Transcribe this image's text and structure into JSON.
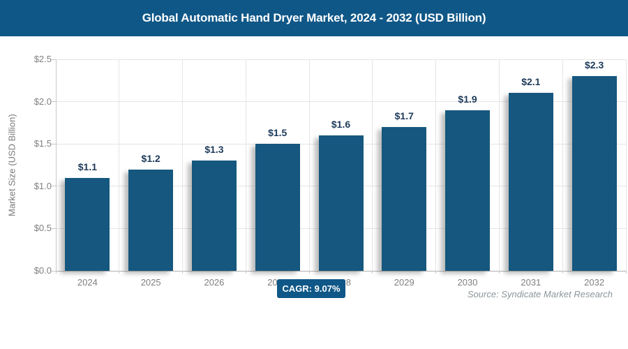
{
  "header": {
    "title": "Global Automatic Hand Dryer Market, 2024 - 2032 (USD Billion)"
  },
  "chart_data": {
    "type": "bar",
    "title": "Global Automatic Hand Dryer Market, 2024 - 2032 (USD Billion)",
    "categories": [
      "2024",
      "2025",
      "2026",
      "2027",
      "2028",
      "2029",
      "2030",
      "2031",
      "2032"
    ],
    "values": [
      1.1,
      1.2,
      1.3,
      1.5,
      1.6,
      1.7,
      1.9,
      2.1,
      2.3
    ],
    "bar_labels": [
      "$1.1",
      "$1.2",
      "$1.3",
      "$1.5",
      "$1.6",
      "$1.7",
      "$1.9",
      "$2.1",
      "$2.3"
    ],
    "xlabel": "",
    "ylabel": "Market Size (USD Billion)",
    "ylim": [
      0,
      2.5
    ],
    "ytick_labels": [
      "$0.0",
      "$0.5",
      "$1.0",
      "$1.5",
      "$2.0",
      "$2.5"
    ],
    "grid": true,
    "legend": false
  },
  "footer": {
    "cagr_label": "CAGR: 9.07%",
    "source": "Source: Syndicate Market Research"
  },
  "colors": {
    "header_bg": "#0f5787",
    "bar_fill": "#15577e",
    "bar_label": "#1d3a5a",
    "tick_label": "#7f7f7f",
    "axis_title": "#7a7a7a",
    "gridline": "#e5e5e5",
    "axis_line": "#c9c9c9",
    "baseline": "#b0b0b0",
    "badge_bg": "#0f5787",
    "badge_text": "#ffffff",
    "source_text": "#8b969b"
  }
}
